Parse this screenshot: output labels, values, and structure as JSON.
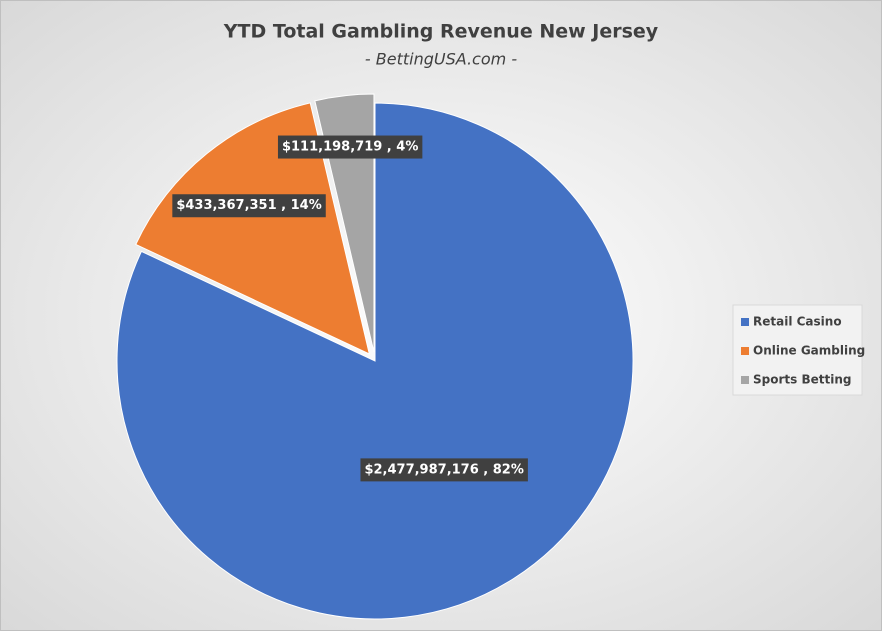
{
  "chart_data": {
    "type": "pie",
    "title": "YTD Total Gambling Revenue New Jersey",
    "subtitle": "- BettingUSA.com -",
    "categories": [
      "Retail Casino",
      "Online Gambling",
      "Sports Betting"
    ],
    "values": [
      2477987176,
      433367351,
      111198719
    ],
    "value_labels": [
      "$2,477,987,176 , 82%",
      "$433,367,351 , 14%",
      "$111,198,719 , 4%"
    ],
    "colors": [
      "#4472c4",
      "#ed7d31",
      "#a5a5a5"
    ],
    "legend": "right"
  }
}
